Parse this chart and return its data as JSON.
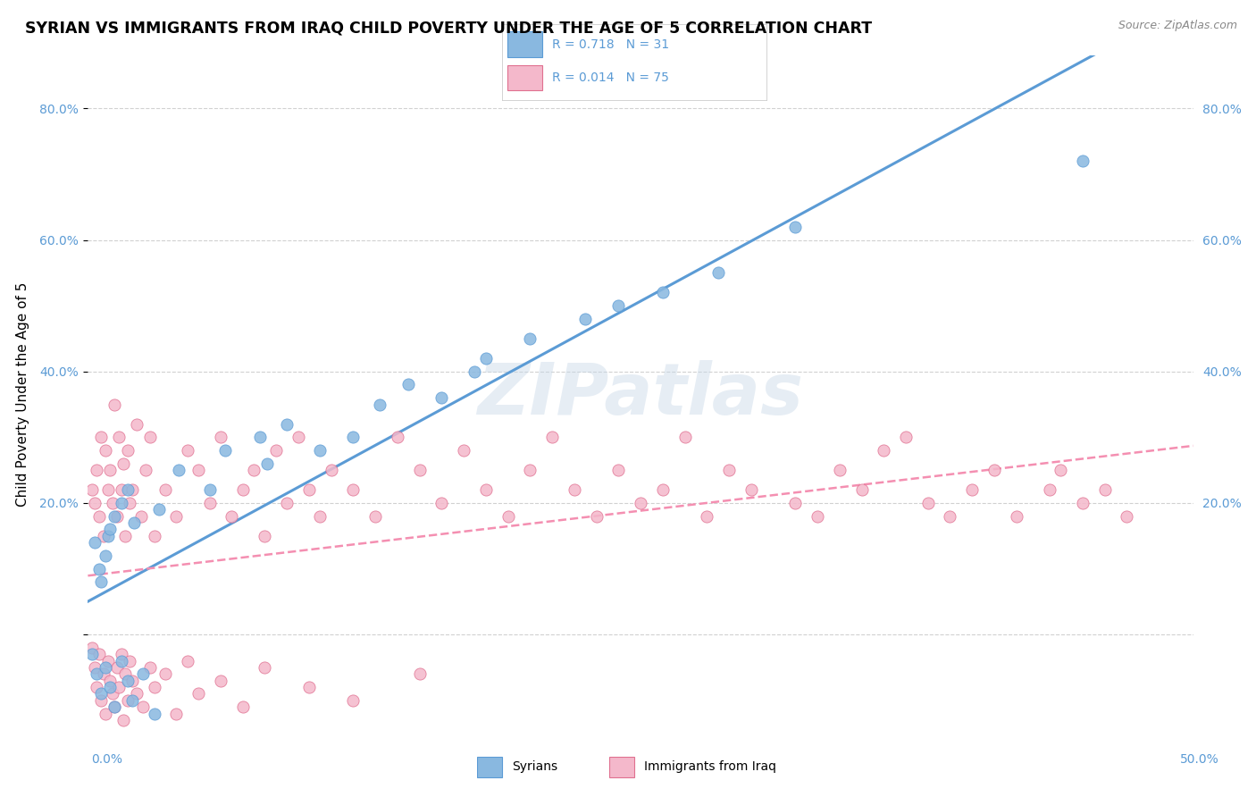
{
  "title": "SYRIAN VS IMMIGRANTS FROM IRAQ CHILD POVERTY UNDER THE AGE OF 5 CORRELATION CHART",
  "source": "Source: ZipAtlas.com",
  "ylabel": "Child Poverty Under the Age of 5",
  "xlim": [
    0,
    50
  ],
  "ylim": [
    -15,
    88
  ],
  "yticks": [
    0,
    20,
    40,
    60,
    80
  ],
  "color_syrian": "#89b8e0",
  "color_syrian_edge": "#5b9bd5",
  "color_iraq": "#f4b8cb",
  "color_iraq_edge": "#e07090",
  "color_line_syrian": "#5b9bd5",
  "color_line_iraq": "#f48fb1",
  "color_tick": "#5b9bd5",
  "color_legend_text": "#5b9bd5",
  "watermark": "ZIPatlas",
  "background_color": "#ffffff",
  "grid_color": "#cccccc",
  "legend_r_syrian": "R = 0.718",
  "legend_n_syrian": "N = 31",
  "legend_r_iraq": "R = 0.014",
  "legend_n_iraq": "N = 75",
  "legend_label_syrian": "Syrians",
  "legend_label_iraq": "Immigrants from Iraq",
  "syrian_x": [
    0.3,
    0.5,
    0.6,
    0.8,
    0.9,
    1.0,
    1.2,
    1.5,
    1.8,
    2.1,
    3.2,
    4.1,
    5.5,
    6.2,
    7.8,
    8.1,
    9.0,
    10.5,
    12.0,
    13.2,
    14.5,
    16.0,
    17.5,
    18.0,
    20.0,
    22.5,
    24.0,
    26.0,
    28.5,
    32.0,
    45.0
  ],
  "syrian_y": [
    14,
    10,
    8,
    12,
    15,
    16,
    18,
    20,
    22,
    17,
    19,
    25,
    22,
    28,
    30,
    26,
    32,
    28,
    30,
    35,
    38,
    36,
    40,
    42,
    45,
    48,
    50,
    52,
    55,
    62,
    72
  ],
  "iraq_x": [
    0.2,
    0.3,
    0.4,
    0.5,
    0.6,
    0.7,
    0.8,
    0.9,
    1.0,
    1.1,
    1.2,
    1.3,
    1.4,
    1.5,
    1.6,
    1.7,
    1.8,
    1.9,
    2.0,
    2.2,
    2.4,
    2.6,
    2.8,
    3.0,
    3.5,
    4.0,
    4.5,
    5.0,
    5.5,
    6.0,
    6.5,
    7.0,
    7.5,
    8.0,
    8.5,
    9.0,
    9.5,
    10.0,
    10.5,
    11.0,
    12.0,
    13.0,
    14.0,
    15.0,
    16.0,
    17.0,
    18.0,
    19.0,
    20.0,
    21.0,
    22.0,
    23.0,
    24.0,
    25.0,
    26.0,
    27.0,
    28.0,
    29.0,
    30.0,
    32.0,
    33.0,
    34.0,
    35.0,
    36.0,
    37.0,
    38.0,
    39.0,
    40.0,
    41.0,
    42.0,
    43.5,
    44.0,
    45.0,
    46.0,
    47.0
  ],
  "iraq_y": [
    22,
    20,
    25,
    18,
    30,
    15,
    28,
    22,
    25,
    20,
    35,
    18,
    30,
    22,
    26,
    15,
    28,
    20,
    22,
    32,
    18,
    25,
    30,
    15,
    22,
    18,
    28,
    25,
    20,
    30,
    18,
    22,
    25,
    15,
    28,
    20,
    30,
    22,
    18,
    25,
    22,
    18,
    30,
    25,
    20,
    28,
    22,
    18,
    25,
    30,
    22,
    18,
    25,
    20,
    22,
    30,
    18,
    25,
    22,
    20,
    18,
    25,
    22,
    28,
    30,
    20,
    18,
    22,
    25,
    18,
    22,
    25,
    20,
    22,
    18
  ],
  "iraq_below_x": [
    0.2,
    0.3,
    0.4,
    0.5,
    0.6,
    0.7,
    0.8,
    0.9,
    1.0,
    1.1,
    1.2,
    1.3,
    1.4,
    1.5,
    1.6,
    1.7,
    1.8,
    1.9,
    2.0,
    2.2,
    2.5,
    2.8,
    3.0,
    3.5,
    4.0,
    4.5,
    5.0,
    6.0,
    7.0,
    8.0,
    10.0,
    12.0,
    15.0
  ],
  "iraq_below_y": [
    -2,
    -5,
    -8,
    -3,
    -10,
    -6,
    -12,
    -4,
    -7,
    -9,
    -11,
    -5,
    -8,
    -3,
    -13,
    -6,
    -10,
    -4,
    -7,
    -9,
    -11,
    -5,
    -8,
    -6,
    -12,
    -4,
    -9,
    -7,
    -11,
    -5,
    -8,
    -10,
    -6
  ],
  "syrian_below_x": [
    0.2,
    0.4,
    0.6,
    0.8,
    1.0,
    1.2,
    1.5,
    1.8,
    2.0,
    2.5,
    3.0
  ],
  "syrian_below_y": [
    -3,
    -6,
    -9,
    -5,
    -8,
    -11,
    -4,
    -7,
    -10,
    -6,
    -12
  ]
}
